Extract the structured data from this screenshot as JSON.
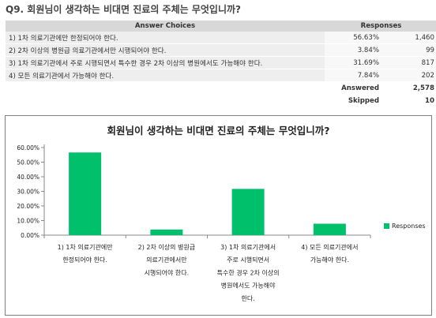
{
  "question": "Q9. 회원님이 생각하는 비대면 진료의 주체는 무엇입니까?",
  "table": {
    "header_choice": "Answer Choices",
    "header_responses": "Responses",
    "rows": [
      {
        "label": "1) 1차 의료기관에만 한정되어야 한다.",
        "percent": "56.63%",
        "count": "1,460"
      },
      {
        "label": "2) 2차 이상의 병원급 의료기관에서만 시행되어야 한다.",
        "percent": "3.84%",
        "count": "99"
      },
      {
        "label": "3) 1차 의료기관에서 주로 시행되면서 특수한 경우 2차 이상의 병원에서도 가능해야 한다.",
        "percent": "31.69%",
        "count": "817"
      },
      {
        "label": "4) 모든 의료기관에서 가능해야 한다.",
        "percent": "7.84%",
        "count": "202"
      }
    ],
    "answered_label": "Answered",
    "answered_value": "2,578",
    "skipped_label": "Skipped",
    "skipped_value": "10"
  },
  "chart_data": {
    "type": "bar",
    "title": "회원님이 생각하는 비대면 진료의 주체는 무엇입니까?",
    "categories": [
      [
        "1) 1차 의료기관에만",
        "한정되어야 한다."
      ],
      [
        "2) 2차 이상의 병원급",
        "의료기관에서만",
        "시행되어야 한다."
      ],
      [
        "3) 1차 의료기관에서",
        "주로 시행되면서",
        "특수한 경우 2차 이상의",
        "병원에서도 가능해야",
        "한다."
      ],
      [
        "4) 모든 의료기관에서",
        "가능해야 한다."
      ]
    ],
    "series": [
      {
        "name": "Responses",
        "values": [
          56.63,
          3.84,
          31.69,
          7.84
        ]
      }
    ],
    "ylim": [
      0,
      60
    ],
    "yticks": [
      "0.00%",
      "10.00%",
      "20.00%",
      "30.00%",
      "40.00%",
      "50.00%",
      "60.00%"
    ],
    "grid": false,
    "legend": "right",
    "color": "#00c06b"
  }
}
